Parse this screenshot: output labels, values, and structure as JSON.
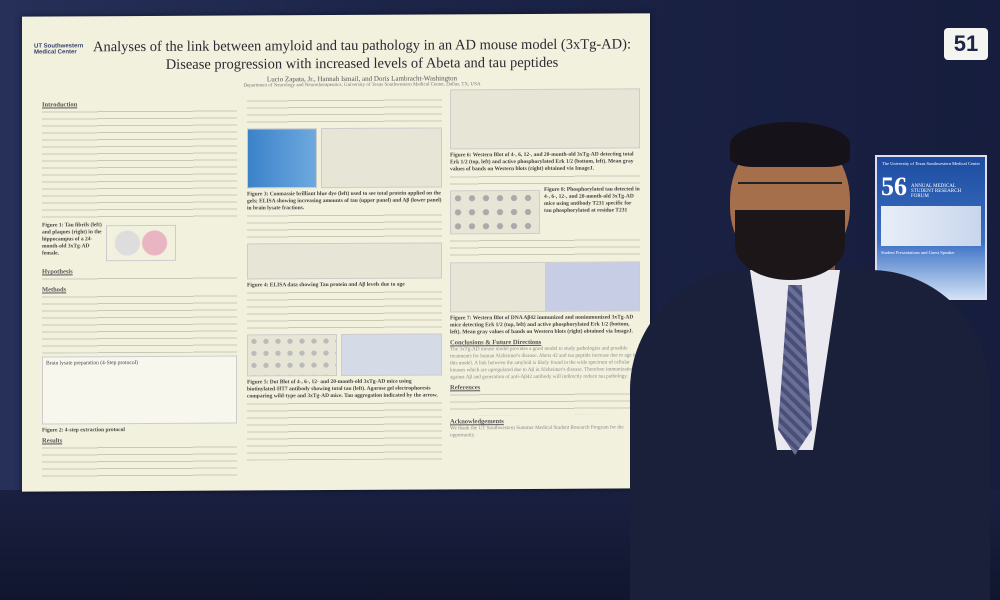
{
  "booth_number": "51",
  "poster": {
    "logo": "UT Southwestern Medical Center",
    "title_line1": "Analyses of the link between amyloid and tau pathology in an AD mouse model (3xTg-AD):",
    "title_line2": "Disease progression with increased levels of Abeta and tau peptides",
    "authors": "Lucio Zapata, Jr., Hannah Ismail, and Doris Lambracht-Washington",
    "department": "Department of Neurology and Neurotherapeutics, University of Texas Southwestern Medical Center, Dallas, TX, USA",
    "sections": {
      "introduction": "Introduction",
      "hypothesis": "Hypothesis",
      "methods": "Methods",
      "results": "Results",
      "conclusions": "Conclusions & Future Directions",
      "references": "References",
      "acknowledgements": "Acknowledgements"
    },
    "captions": {
      "fig1": "Figure 1: Tau fibrils (left) and plaques (right) in the hippocampus of a 24-month-old 3xTg-AD female.",
      "fig2": "Figure 2: 4-step extraction protocol",
      "fig2_title": "Brain lysate preparation (4-Step protocol)",
      "fig3": "Figure 3: Coomassie brilliant blue dye (left) used to see total protein applied on the gels; ELISA showing increasing amounts of tau (upper panel) and Aβ (lower panel) in brain lysate fractions.",
      "fig4": "Figure 4: ELISA data showing Tau protein and Aβ levels due to age",
      "fig5": "Figure 5: Dot Blot of 4-, 6-, 12- and 20-month-old 3xTg-AD mice using biotinylated-HT7 antibody showing total tau (left). Agarose gel electrophoresis comparing wild-type and 3xTg-AD mice. Tau aggregation indicated by the arrow.",
      "fig6": "Figure 6: Western Blot of 4-, 6, 12-, and 20-month-old 3xTg-AD detecting total Erk 1/2 (top, left) and active phosphorylated Erk 1/2 (bottom, left). Mean gray values of bands on Western blots (right) obtained via ImageJ.",
      "fig7": "Figure 7: Western Blot of DNA Aβ42 immunized and nonimmunized 3xTg-AD mice detecting Erk 1/2 (top, left) and active phosphorylated Erk 1/2 (bottom, left). Mean gray values of bands on Western blots (right) obtained via ImageJ.",
      "fig8": "Figure 8: Phosphorylated tau detected in 4-, 6-, 12-, and 20-month-old 3xTg-AD mice using antibody T231 specific for tau phosphorylated at residue T231"
    },
    "conclusion_text": "The 3xTg-AD mouse model provides a good model to study pathologies and possible treatments for human Alzheimer's disease. Abeta 42 and tau peptide increase due to age in this model. A link between the amyloid is likely found in the wide spectrum of cellular kinases which are upregulated due to Aβ in Alzheimer's disease. Therefore immunization against Aβ and generation of anti-Aβ42 antibody will indirectly reduce tau pathology.",
    "acknowledgements_text": "We thank the UT Southwestern Summer Medical Student Research Program for the opportunity."
  },
  "flyer": {
    "header": "The University of Texas Southwestern Medical Center",
    "number": "56",
    "event": "ANNUAL MEDICAL STUDENT RESEARCH FORUM",
    "speaker": "Student Presentations and Guest Speaker"
  }
}
